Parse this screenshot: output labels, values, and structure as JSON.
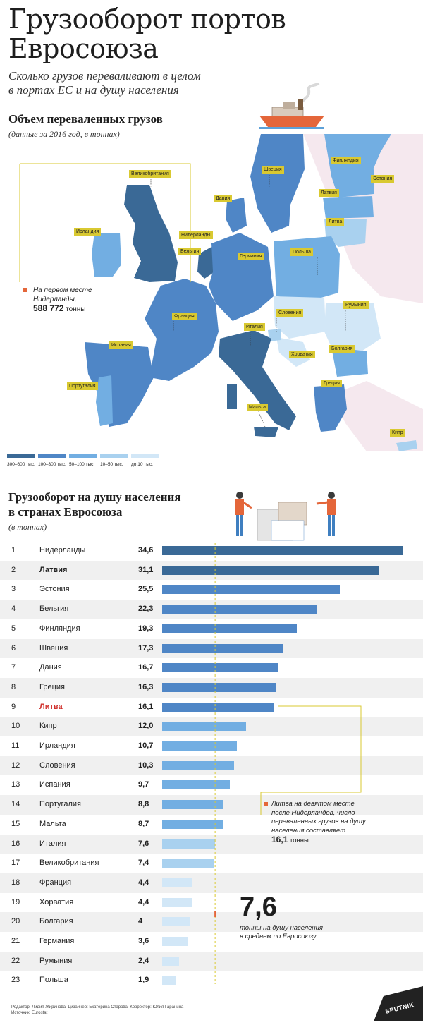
{
  "title_line1": "Грузооборот портов",
  "title_line2": "Евросоюза",
  "subtitle_line1": "Сколько грузов переваливают в целом",
  "subtitle_line2": "в портах ЕС и на душу населения",
  "map_section": {
    "title": "Объем переваленных грузов",
    "subtitle": "(данные за 2016 год, в тоннах)",
    "labels": {
      "uk": "Великобритания",
      "ireland": "Ирландия",
      "netherlands": "Нидерланды",
      "belgium": "Бельгия",
      "denmark": "Дания",
      "sweden": "Швеция",
      "finland": "Финляндия",
      "estonia": "Эстония",
      "latvia": "Латвия",
      "lithuania": "Литва",
      "poland": "Польша",
      "germany": "Германия",
      "france": "Франция",
      "spain": "Испания",
      "portugal": "Португалия",
      "italy": "Италия",
      "slovenia": "Словения",
      "croatia": "Хорватия",
      "romania": "Румыния",
      "bulgaria": "Болгария",
      "greece": "Греция",
      "malta": "Мальта",
      "cyprus": "Кипр"
    },
    "note_line1": "На первом месте",
    "note_line2": "Нидерланды,",
    "note_value": "588 772",
    "note_unit": "тонны",
    "legend": [
      {
        "label": "300–600 тыс.",
        "color": "#3a6996"
      },
      {
        "label": "100–300 тыс.",
        "color": "#4f86c6"
      },
      {
        "label": "50–100 тыс.",
        "color": "#72aee2"
      },
      {
        "label": "10–50 тыс.",
        "color": "#a9d1ef"
      },
      {
        "label": "до 10 тыс.",
        "color": "#d2e7f7"
      }
    ]
  },
  "chart_data": {
    "type": "bar",
    "title": "Грузооборот на душу населения в странах Евросоюза",
    "title_line1": "Грузооборот на душу населения",
    "title_line2": "в странах Евросоюза",
    "subtitle": "(в тоннах)",
    "ranks": [
      "1",
      "2",
      "3",
      "4",
      "5",
      "6",
      "7",
      "8",
      "9",
      "10",
      "11",
      "12",
      "13",
      "14",
      "15",
      "16",
      "17",
      "18",
      "19",
      "20",
      "21",
      "22",
      "23"
    ],
    "categories": [
      "Нидерланды",
      "Латвия",
      "Эстония",
      "Бельгия",
      "Финляндия",
      "Швеция",
      "Дания",
      "Греция",
      "Литва",
      "Кипр",
      "Ирландия",
      "Словения",
      "Испания",
      "Португалия",
      "Мальта",
      "Италия",
      "Великобритания",
      "Франция",
      "Хорватия",
      "Болгария",
      "Германия",
      "Румыния",
      "Польша"
    ],
    "value_labels": [
      "34,6",
      "31,1",
      "25,5",
      "22,3",
      "19,3",
      "17,3",
      "16,7",
      "16,3",
      "16,1",
      "12,0",
      "10,7",
      "10,3",
      "9,7",
      "8,8",
      "8,7",
      "7,6",
      "7,4",
      "4,4",
      "4,4",
      "4",
      "3,6",
      "2,4",
      "1,9"
    ],
    "values": [
      34.6,
      31.1,
      25.5,
      22.3,
      19.3,
      17.3,
      16.7,
      16.3,
      16.1,
      12.0,
      10.7,
      10.3,
      9.7,
      8.8,
      8.7,
      7.6,
      7.4,
      4.4,
      4.4,
      4,
      3.6,
      2.4,
      1.9
    ],
    "bar_colors": [
      "#3a6996",
      "#3a6996",
      "#4f86c6",
      "#4f86c6",
      "#4f86c6",
      "#4f86c6",
      "#4f86c6",
      "#4f86c6",
      "#4f86c6",
      "#72aee2",
      "#72aee2",
      "#72aee2",
      "#72aee2",
      "#72aee2",
      "#72aee2",
      "#a9d1ef",
      "#a9d1ef",
      "#d2e7f7",
      "#d2e7f7",
      "#d2e7f7",
      "#d2e7f7",
      "#d2e7f7",
      "#d2e7f7"
    ],
    "average_value": 7.6,
    "average_label": "7,6",
    "average_text_line1": "тонны на душу населения",
    "average_text_line2": "в среднем по Евросоюзу",
    "annotation_line1": "Литва на девятом месте",
    "annotation_line2": "после Нидерландов, число",
    "annotation_line3": "переваленных грузов на душу",
    "annotation_line4": "населения составляет",
    "annotation_value": "16,1",
    "annotation_unit": "тонны"
  },
  "footer_line1": "Редактор: Лидия Жиринова. Дизайнер: Екатерина Старова. Корректор: Юлия Гаранина",
  "footer_line2": "Источник: Eurostat",
  "brand": "SPUTNIK"
}
